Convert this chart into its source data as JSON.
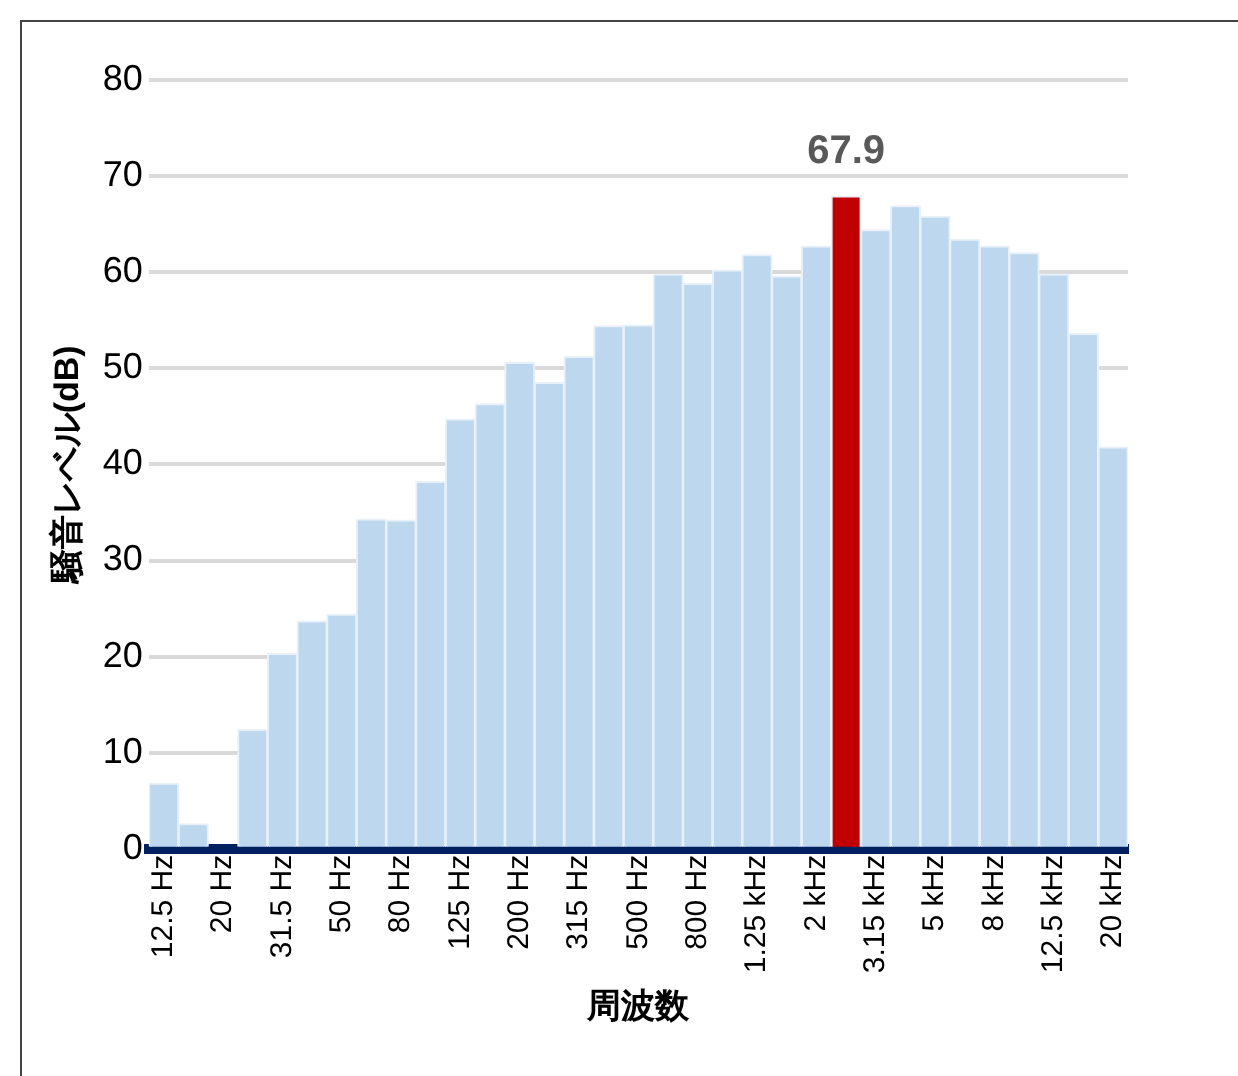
{
  "chart_data": {
    "type": "bar",
    "xlabel": "周波数",
    "ylabel": "騒音レベル(dB)",
    "categories": [
      "12.5 Hz",
      null,
      "20 Hz",
      null,
      "31.5 Hz",
      null,
      "50 Hz",
      null,
      "80 Hz",
      null,
      "125 Hz",
      null,
      "200 Hz",
      null,
      "315 Hz",
      null,
      "500 Hz",
      null,
      "800 Hz",
      null,
      "1.25 kHz",
      null,
      "2 kHz",
      null,
      "3.15 kHz",
      null,
      "5 kHz",
      null,
      "8 kHz",
      null,
      "12.5 kHz",
      null,
      "20 kHz"
    ],
    "values": [
      6.8,
      2.6,
      null,
      12.4,
      20.3,
      23.7,
      24.4,
      34.3,
      34.2,
      38.2,
      44.7,
      46.3,
      50.6,
      48.5,
      51.2,
      54.4,
      54.5,
      59.8,
      58.8,
      60.2,
      61.8,
      59.6,
      62.7,
      67.9,
      64.4,
      66.9,
      65.8,
      63.4,
      62.7,
      62.0,
      59.8,
      53.6,
      41.8
    ],
    "colors": [
      "#bdd7ee",
      "#bdd7ee",
      "#bdd7ee",
      "#bdd7ee",
      "#bdd7ee",
      "#bdd7ee",
      "#bdd7ee",
      "#bdd7ee",
      "#bdd7ee",
      "#bdd7ee",
      "#bdd7ee",
      "#bdd7ee",
      "#bdd7ee",
      "#bdd7ee",
      "#bdd7ee",
      "#bdd7ee",
      "#bdd7ee",
      "#bdd7ee",
      "#bdd7ee",
      "#bdd7ee",
      "#bdd7ee",
      "#bdd7ee",
      "#bdd7ee",
      "#c00000",
      "#bdd7ee",
      "#bdd7ee",
      "#bdd7ee",
      "#bdd7ee",
      "#bdd7ee",
      "#bdd7ee",
      "#bdd7ee",
      "#bdd7ee",
      "#bdd7ee"
    ],
    "value_labels": [
      null,
      null,
      null,
      null,
      null,
      null,
      null,
      null,
      null,
      null,
      null,
      null,
      null,
      null,
      null,
      null,
      null,
      null,
      null,
      null,
      null,
      null,
      null,
      "67.9",
      null,
      null,
      null,
      null,
      null,
      null,
      null,
      null,
      null
    ],
    "ylim": [
      0,
      80
    ],
    "yticks": [
      0,
      10,
      20,
      30,
      40,
      50,
      60,
      70,
      80
    ],
    "grid": "y",
    "legend": false
  }
}
